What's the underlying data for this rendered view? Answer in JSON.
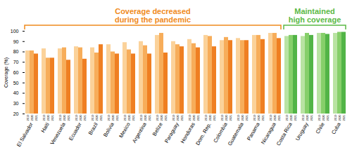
{
  "chart_data": {
    "type": "bar",
    "y_label": "Coverage (%)",
    "categories": [
      "El Salvador",
      "Haiti",
      "Venezuela",
      "Ecuador",
      "Brazil",
      "Bolivia",
      "Mexico",
      "Argentina",
      "Belize",
      "Paraguay",
      "Honduras",
      "Dom. Rep.",
      "Colombia",
      "Guatemala",
      "Panama",
      "Nicaragua",
      "Costa Rica",
      "Uruguay",
      "Chile",
      "Cuba"
    ],
    "series": [
      {
        "name": "2019",
        "colors": [
          "#fbd29a",
          "#fbd29a",
          "#fbd29a",
          "#fbd29a",
          "#fbd29a",
          "#fbd29a",
          "#fbd29a",
          "#fbd29a",
          "#fbd29a",
          "#fbd29a",
          "#fbd29a",
          "#fbd29a",
          "#fbd29a",
          "#fbd29a",
          "#fbd29a",
          "#fbd29a",
          "#b9e3a3",
          "#b9e3a3",
          "#b9e3a3",
          "#b9e3a3"
        ],
        "values": [
          81,
          83,
          83,
          85,
          84,
          87,
          89,
          90,
          96,
          90,
          92,
          96,
          91,
          93,
          96,
          98,
          95,
          95,
          98,
          98
        ]
      },
      {
        "name": "2020",
        "colors": [
          "#f7ad5a",
          "#f7ad5a",
          "#f7ad5a",
          "#f7ad5a",
          "#f7ad5a",
          "#f7ad5a",
          "#f7ad5a",
          "#f7ad5a",
          "#f7ad5a",
          "#f7ad5a",
          "#f7ad5a",
          "#f7ad5a",
          "#f7ad5a",
          "#f7ad5a",
          "#f7ad5a",
          "#f7ad5a",
          "#86cf6a",
          "#86cf6a",
          "#86cf6a",
          "#86cf6a"
        ],
        "values": [
          81,
          74,
          84,
          84,
          79,
          80,
          82,
          86,
          98,
          87,
          88,
          95,
          94,
          91,
          96,
          98,
          96,
          98,
          98,
          99
        ]
      },
      {
        "name": "2021",
        "colors": [
          "#ef7f22",
          "#ef7f22",
          "#ef7f22",
          "#ef7f22",
          "#ef7f22",
          "#ef7f22",
          "#ef7f22",
          "#ef7f22",
          "#ef7f22",
          "#ef7f22",
          "#ef7f22",
          "#ef7f22",
          "#ef7f22",
          "#ef7f22",
          "#ef7f22",
          "#ef7f22",
          "#52b447",
          "#52b447",
          "#52b447",
          "#52b447"
        ],
        "values": [
          78,
          74,
          72,
          73,
          87,
          78,
          78,
          78,
          79,
          85,
          84,
          85,
          91,
          91,
          92,
          93,
          96,
          96,
          97,
          99
        ]
      }
    ],
    "ylim": [
      20,
      100
    ],
    "yticks": [
      20,
      30,
      40,
      50,
      60,
      70,
      80,
      90,
      100
    ],
    "grid": false,
    "annotations": [
      {
        "text": "Coverage decreased\nduring the pandemic",
        "from": "El Salvador",
        "to": "Nicaragua",
        "color": "#f08a1c"
      },
      {
        "text": "Maintained\nhigh coverage",
        "from": "Costa Rica",
        "to": "Cuba",
        "color": "#5bb946"
      }
    ]
  }
}
